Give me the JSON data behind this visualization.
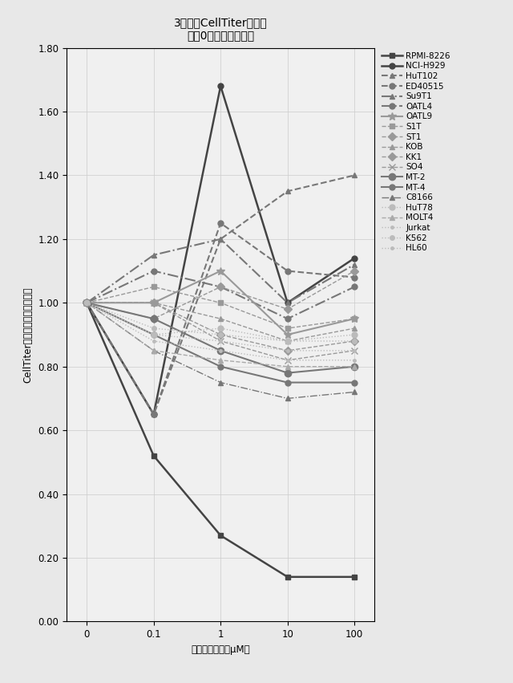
{
  "title_line1": "3日目のCellTiter相対値",
  "title_line2": "（で0日目（対照））",
  "xlabel": "レナリドミド（μM）",
  "ylabel_chars": [
    "テ",
    "ィ",
    "タ",
    "l",
    "l",
    "e",
    "T",
    "l",
    "l",
    "e",
    "C",
    "比",
    "（",
    "対",
    "無",
    "処",
    "置",
    "対",
    "照",
    "群",
    "）"
  ],
  "ylabel_text": "CellTiter比（対無処置対照群）",
  "x_labels": [
    "0",
    "0.1",
    "1",
    "10",
    "100"
  ],
  "x_values": [
    0,
    1,
    2,
    3,
    4
  ],
  "ylim": [
    0.0,
    1.8
  ],
  "yticks": [
    0.0,
    0.2,
    0.4,
    0.6,
    0.8,
    1.0,
    1.2,
    1.4,
    1.6,
    1.8
  ],
  "series": [
    {
      "name": "RPMI-8226",
      "values": [
        1.0,
        0.52,
        0.27,
        0.14,
        0.14
      ],
      "color": "#444444",
      "linestyle": "-",
      "marker": "s",
      "linewidth": 1.8,
      "markersize": 5
    },
    {
      "name": "NCI-H929",
      "values": [
        1.0,
        0.65,
        1.68,
        1.0,
        1.14
      ],
      "color": "#444444",
      "linestyle": "-",
      "marker": "o",
      "linewidth": 1.8,
      "markersize": 5
    },
    {
      "name": "HuT102",
      "values": [
        1.0,
        0.65,
        1.2,
        1.35,
        1.4
      ],
      "color": "#777777",
      "linestyle": "--",
      "marker": "^",
      "linewidth": 1.5,
      "markersize": 5
    },
    {
      "name": "ED40515",
      "values": [
        1.0,
        0.65,
        1.25,
        1.1,
        1.08
      ],
      "color": "#777777",
      "linestyle": "--",
      "marker": "o",
      "linewidth": 1.5,
      "markersize": 5
    },
    {
      "name": "Su9T1",
      "values": [
        1.0,
        1.15,
        1.2,
        1.0,
        1.12
      ],
      "color": "#777777",
      "linestyle": "-.",
      "marker": "^",
      "linewidth": 1.5,
      "markersize": 5
    },
    {
      "name": "OATL4",
      "values": [
        1.0,
        1.1,
        1.05,
        0.95,
        1.05
      ],
      "color": "#777777",
      "linestyle": "-.",
      "marker": "o",
      "linewidth": 1.5,
      "markersize": 5
    },
    {
      "name": "OATL9",
      "values": [
        1.0,
        1.0,
        1.1,
        0.9,
        0.95
      ],
      "color": "#999999",
      "linestyle": "-",
      "marker": "*",
      "linewidth": 1.5,
      "markersize": 7
    },
    {
      "name": "S1T",
      "values": [
        1.0,
        1.05,
        1.0,
        0.92,
        0.95
      ],
      "color": "#999999",
      "linestyle": "--",
      "marker": "s",
      "linewidth": 1.0,
      "markersize": 5
    },
    {
      "name": "ST1",
      "values": [
        1.0,
        0.95,
        1.05,
        0.98,
        1.1
      ],
      "color": "#999999",
      "linestyle": "--",
      "marker": "D",
      "linewidth": 1.0,
      "markersize": 5
    },
    {
      "name": "KOB",
      "values": [
        1.0,
        1.0,
        0.95,
        0.88,
        0.92
      ],
      "color": "#999999",
      "linestyle": "--",
      "marker": "^",
      "linewidth": 1.0,
      "markersize": 5
    },
    {
      "name": "KK1",
      "values": [
        1.0,
        1.0,
        0.9,
        0.85,
        0.88
      ],
      "color": "#999999",
      "linestyle": "--",
      "marker": "D",
      "linewidth": 1.0,
      "markersize": 5
    },
    {
      "name": "SO4",
      "values": [
        1.0,
        1.0,
        0.88,
        0.82,
        0.85
      ],
      "color": "#999999",
      "linestyle": "--",
      "marker": "x",
      "linewidth": 1.0,
      "markersize": 6
    },
    {
      "name": "MT-2",
      "values": [
        1.0,
        0.95,
        0.85,
        0.78,
        0.8
      ],
      "color": "#777777",
      "linestyle": "-",
      "marker": "o",
      "linewidth": 1.5,
      "markersize": 6
    },
    {
      "name": "MT-4",
      "values": [
        1.0,
        0.9,
        0.8,
        0.75,
        0.75
      ],
      "color": "#777777",
      "linestyle": "-",
      "marker": "o",
      "linewidth": 1.5,
      "markersize": 5
    },
    {
      "name": "C8166",
      "values": [
        1.0,
        0.85,
        0.75,
        0.7,
        0.72
      ],
      "color": "#777777",
      "linestyle": "-.",
      "marker": "^",
      "linewidth": 1.0,
      "markersize": 5
    },
    {
      "name": "HuT78",
      "values": [
        1.0,
        0.9,
        0.92,
        0.88,
        0.9
      ],
      "color": "#bbbbbb",
      "linestyle": ":",
      "marker": "o",
      "linewidth": 1.0,
      "markersize": 5
    },
    {
      "name": "MOLT4",
      "values": [
        1.0,
        0.85,
        0.82,
        0.8,
        0.8
      ],
      "color": "#aaaaaa",
      "linestyle": "--",
      "marker": "^",
      "linewidth": 1.0,
      "markersize": 5
    },
    {
      "name": "Jurkat",
      "values": [
        1.0,
        0.88,
        0.85,
        0.82,
        0.82
      ],
      "color": "#bbbbbb",
      "linestyle": ":",
      "marker": ".",
      "linewidth": 1.0,
      "markersize": 5
    },
    {
      "name": "K562",
      "values": [
        1.0,
        0.92,
        0.9,
        0.88,
        0.88
      ],
      "color": "#bbbbbb",
      "linestyle": ":",
      "marker": "o",
      "linewidth": 1.0,
      "markersize": 4
    },
    {
      "name": "HL60",
      "values": [
        1.0,
        0.9,
        0.88,
        0.85,
        0.85
      ],
      "color": "#bbbbbb",
      "linestyle": ":",
      "marker": ".",
      "linewidth": 1.0,
      "markersize": 5
    }
  ],
  "background_color": "#e8e8e8",
  "plot_bg_color": "#f0f0f0",
  "grid_color": "#cccccc",
  "legend_fontsize": 7.5,
  "title_fontsize": 10,
  "axis_label_fontsize": 8.5,
  "tick_fontsize": 8.5
}
